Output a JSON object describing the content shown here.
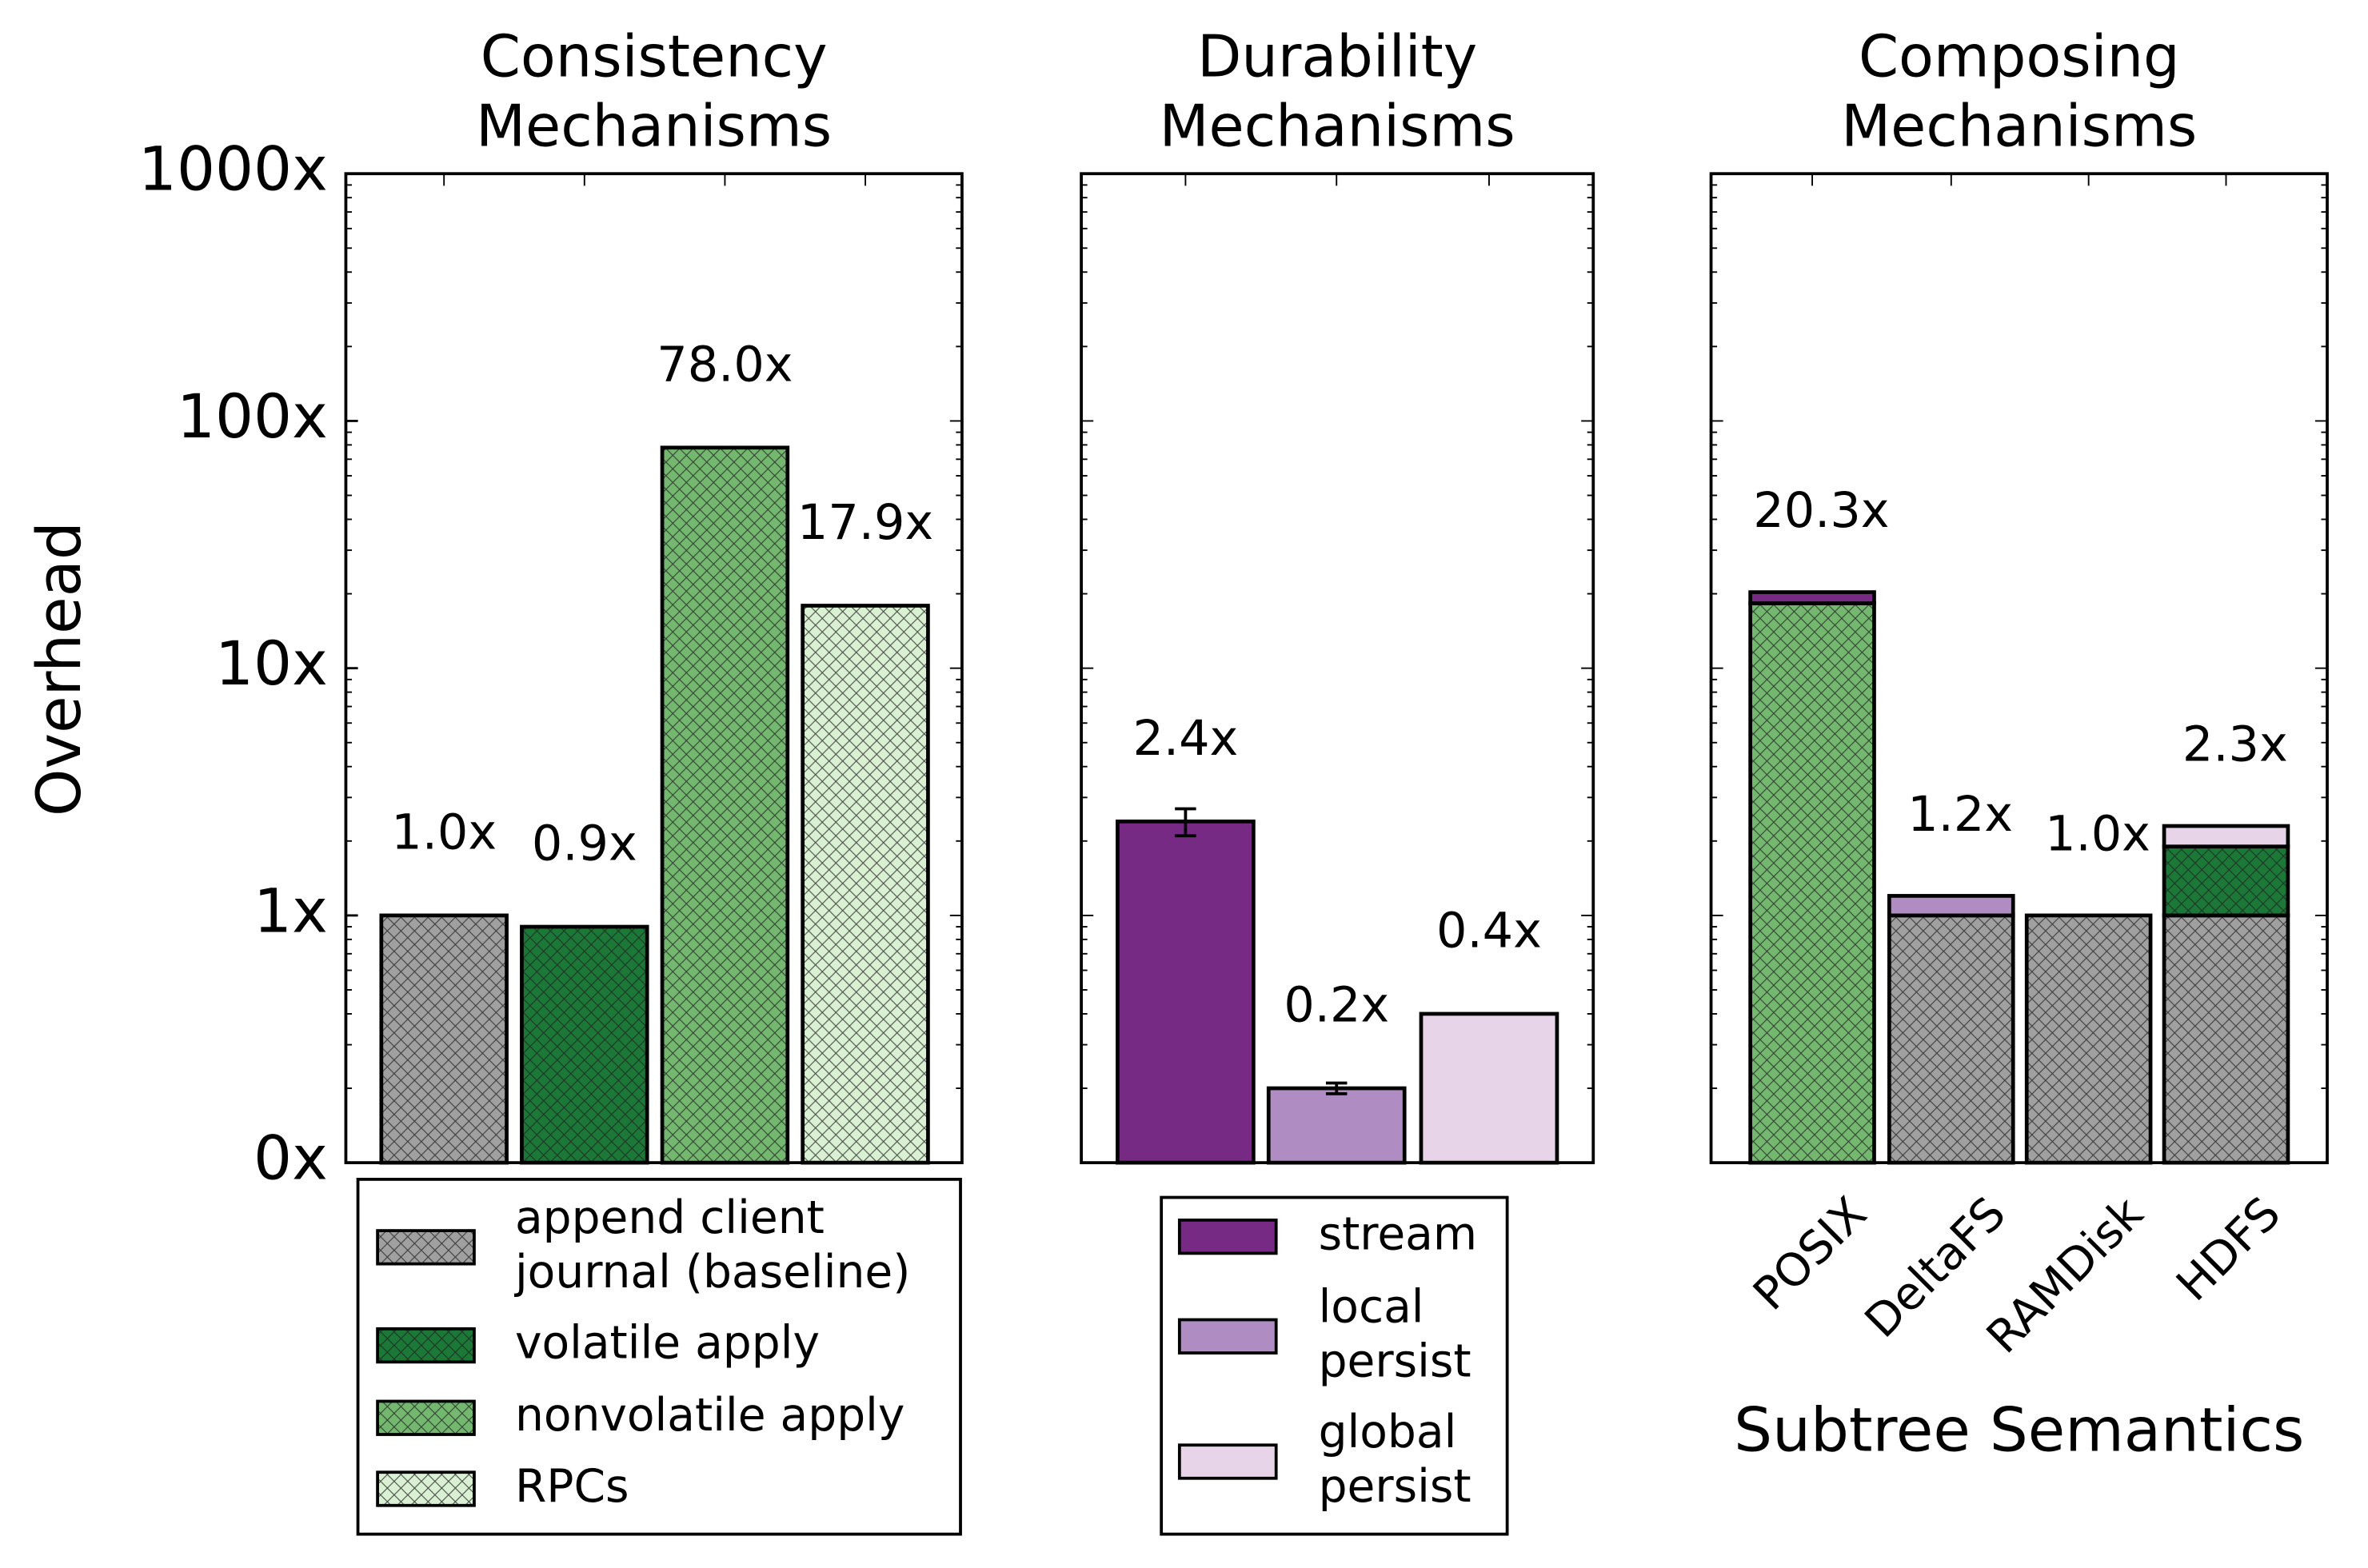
{
  "chart_data": [
    {
      "type": "bar",
      "title": "Consistency\nMechanisms",
      "ylabel": "Overhead",
      "log": true,
      "ylim": [
        0.1,
        1000
      ],
      "yticks": [
        {
          "value": 0.1,
          "label": "0x"
        },
        {
          "value": 1,
          "label": "1x"
        },
        {
          "value": 10,
          "label": "10x"
        },
        {
          "value": 100,
          "label": "100x"
        },
        {
          "value": 1000,
          "label": "1000x"
        }
      ],
      "legend": "below",
      "series": [
        {
          "name": "append client\njournal (baseline)",
          "color": "#a0a0a0",
          "hatch": "xx",
          "values": [
            1.0
          ],
          "value_labels": [
            "1.0x"
          ]
        },
        {
          "name": "volatile apply",
          "color": "#1b7837",
          "hatch": "xx",
          "values": [
            0.9
          ],
          "value_labels": [
            "0.9x"
          ]
        },
        {
          "name": "nonvolatile apply",
          "color": "#74b870",
          "hatch": "xx",
          "values": [
            78.0
          ],
          "value_labels": [
            "78.0x"
          ]
        },
        {
          "name": "RPCs",
          "color": "#d9f0d3",
          "hatch": "xx",
          "values": [
            17.9
          ],
          "value_labels": [
            "17.9x"
          ]
        }
      ]
    },
    {
      "type": "bar",
      "title": "Durability\nMechanisms",
      "log": true,
      "ylim": [
        0.1,
        1000
      ],
      "legend": "below",
      "series": [
        {
          "name": "stream",
          "color": "#762a83",
          "values": [
            2.4
          ],
          "errors": [
            0.3
          ],
          "value_labels": [
            "2.4x"
          ]
        },
        {
          "name": "local\npersist",
          "color": "#af8dc3",
          "values": [
            0.2
          ],
          "errors": [
            0.01
          ],
          "value_labels": [
            "0.2x"
          ]
        },
        {
          "name": "global\npersist",
          "color": "#e7d4e8",
          "values": [
            0.4
          ],
          "value_labels": [
            "0.4x"
          ]
        }
      ]
    },
    {
      "type": "stacked-bar",
      "title": "Composing\nMechanisms",
      "xlabel": "Subtree Semantics",
      "log": true,
      "ylim": [
        0.1,
        1000
      ],
      "categories": [
        "POSIX",
        "DeltaFS",
        "RAMDisk",
        "HDFS"
      ],
      "totals": [
        20.3,
        1.2,
        1.0,
        2.3
      ],
      "total_labels": [
        "20.3x",
        "1.2x",
        "1.0x",
        "2.3x"
      ],
      "series": [
        {
          "color": "#a0a0a0",
          "hatch": "xx",
          "values": [
            null,
            1.0,
            1.0,
            1.0
          ]
        },
        {
          "color": "#74b870",
          "hatch": "xx",
          "values": [
            18.3,
            null,
            null,
            null
          ]
        },
        {
          "color": "#1b7837",
          "hatch": "xx",
          "values": [
            null,
            null,
            null,
            0.9
          ]
        },
        {
          "color": "#762a83",
          "values": [
            2.0,
            null,
            null,
            null
          ]
        },
        {
          "color": "#af8dc3",
          "values": [
            null,
            0.2,
            null,
            null
          ]
        },
        {
          "color": "#e7d4e8",
          "values": [
            null,
            null,
            null,
            0.4
          ]
        }
      ]
    }
  ]
}
